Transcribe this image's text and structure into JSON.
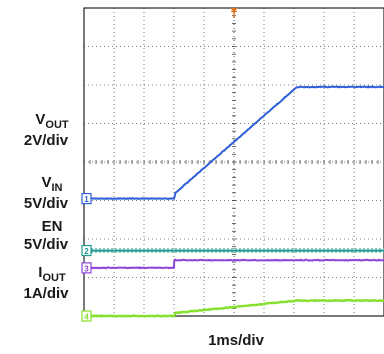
{
  "chart_data": {
    "type": "line",
    "title": "",
    "xlabel": "1ms/div",
    "ylabel": "",
    "grid": true,
    "x_divisions": 10,
    "y_divisions": 8,
    "channel_labels": [
      {
        "id": "vout",
        "text": "V",
        "sub": "OUT",
        "scale": "2V/div"
      },
      {
        "id": "vin",
        "text": "V",
        "sub": "IN",
        "scale": "5V/div"
      },
      {
        "id": "en",
        "text": "EN",
        "sub": "",
        "scale": "5V/div"
      },
      {
        "id": "iout",
        "text": "I",
        "sub": "OUT",
        "scale": "1A/div"
      }
    ],
    "markers": [
      "1",
      "2",
      "3",
      "4"
    ],
    "trigger_marker": "T",
    "series": [
      {
        "id": "vout",
        "color": "#2f5fd8",
        "marker": "1",
        "offset_div": 3.05,
        "x": [
          0,
          3.0,
          3.05,
          7.1,
          10
        ],
        "y": [
          0,
          0,
          0.15,
          2.9,
          2.9
        ]
      },
      {
        "id": "vin",
        "color": "#1f9b8f",
        "marker": "2",
        "offset_div": 1.7,
        "x": [
          0,
          10
        ],
        "y": [
          0,
          0
        ]
      },
      {
        "id": "en",
        "color": "#8e44d6",
        "marker": "3",
        "offset_div": 1.25,
        "x": [
          0,
          3.0,
          3.01,
          10
        ],
        "y": [
          0,
          0,
          0.2,
          0.2
        ]
      },
      {
        "id": "iout",
        "color": "#86e02e",
        "marker": "4",
        "offset_div": 0.0,
        "x": [
          0,
          3.0,
          3.05,
          7.1,
          10
        ],
        "y": [
          0,
          0,
          0.08,
          0.4,
          0.4
        ]
      }
    ]
  }
}
